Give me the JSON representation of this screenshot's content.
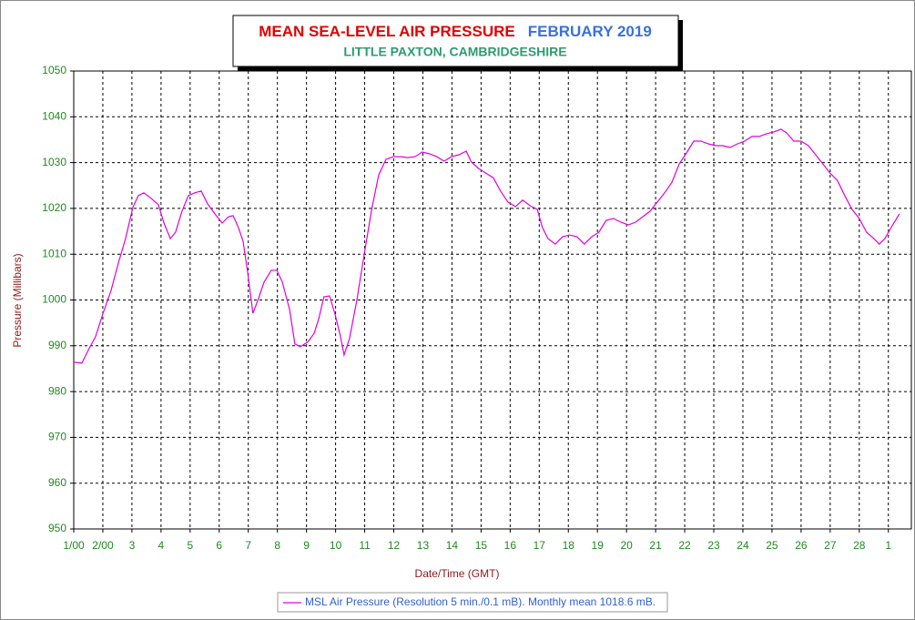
{
  "chart_data": {
    "type": "line",
    "title": "MEAN SEA-LEVEL AIR PRESSURE",
    "title_date": "FEBRUARY 2019",
    "subtitle": "LITTLE PAXTON, CAMBRIDGESHIRE",
    "xlabel": "Date/Time (GMT)",
    "ylabel": "Pressure (Millibars)",
    "xlim": [
      1,
      29.79
    ],
    "ylim": [
      950,
      1050
    ],
    "xticks": [
      {
        "value": 1,
        "label": "1/00"
      },
      {
        "value": 2,
        "label": "2/00"
      },
      3,
      4,
      5,
      6,
      7,
      8,
      9,
      10,
      11,
      12,
      13,
      14,
      15,
      16,
      17,
      18,
      19,
      20,
      21,
      22,
      23,
      24,
      25,
      26,
      27,
      28,
      {
        "value": 29,
        "label": "1"
      }
    ],
    "yticks": [
      950,
      960,
      970,
      980,
      990,
      1000,
      1010,
      1020,
      1030,
      1040,
      1050
    ],
    "grid": true,
    "x": [
      1.0,
      1.28,
      1.53,
      1.75,
      2.0,
      2.28,
      2.53,
      2.78,
      3.03,
      3.22,
      3.41,
      3.66,
      3.91,
      4.1,
      4.32,
      4.5,
      4.72,
      4.94,
      5.16,
      5.38,
      5.6,
      5.85,
      6.1,
      6.32,
      6.48,
      6.66,
      6.82,
      6.98,
      7.16,
      7.35,
      7.54,
      7.79,
      7.98,
      8.17,
      8.42,
      8.6,
      8.79,
      9.04,
      9.26,
      9.42,
      9.6,
      9.79,
      9.98,
      10.17,
      10.29,
      10.48,
      10.73,
      10.98,
      11.23,
      11.48,
      11.73,
      11.98,
      12.23,
      12.48,
      12.73,
      12.98,
      13.23,
      13.48,
      13.73,
      13.98,
      14.24,
      14.49,
      14.67,
      14.92,
      15.17,
      15.42,
      15.67,
      15.92,
      16.18,
      16.43,
      16.68,
      16.93,
      17.11,
      17.3,
      17.55,
      17.8,
      18.05,
      18.3,
      18.55,
      18.8,
      19.05,
      19.3,
      19.55,
      19.8,
      20.06,
      20.31,
      20.56,
      20.81,
      21.06,
      21.31,
      21.56,
      21.81,
      22.06,
      22.31,
      22.56,
      22.81,
      23.06,
      23.31,
      23.56,
      23.81,
      24.06,
      24.31,
      24.56,
      24.81,
      25.06,
      25.31,
      25.5,
      25.75,
      26.0,
      26.25,
      26.5,
      26.75,
      27.0,
      27.25,
      27.5,
      27.75,
      28.0,
      28.25,
      28.5,
      28.69,
      28.88,
      29.13,
      29.38
    ],
    "series": [
      {
        "name": "MSL Air Pressure (Resolution 5 min./0.1 mB). Monthly mean 1018.6 mB.",
        "color": "#e000e0",
        "values": [
          986.4,
          986.2,
          989.4,
          992.0,
          997.0,
          1002.0,
          1008.0,
          1013.4,
          1020.2,
          1022.8,
          1023.4,
          1022.2,
          1020.8,
          1016.8,
          1013.4,
          1014.8,
          1019.4,
          1022.8,
          1023.4,
          1023.8,
          1021.0,
          1018.8,
          1016.8,
          1018.2,
          1018.4,
          1015.8,
          1012.8,
          1005.9,
          997.1,
          1000.3,
          1003.9,
          1006.5,
          1006.5,
          1003.9,
          997.9,
          990.4,
          989.8,
          990.8,
          992.7,
          995.9,
          1000.7,
          1000.9,
          996.9,
          992.0,
          988.0,
          991.6,
          999.9,
          1009.8,
          1019.4,
          1027.3,
          1030.7,
          1031.3,
          1031.3,
          1031.1,
          1031.3,
          1032.3,
          1031.9,
          1031.3,
          1030.3,
          1031.3,
          1031.7,
          1032.5,
          1030.1,
          1028.7,
          1027.7,
          1026.7,
          1023.8,
          1021.4,
          1020.4,
          1021.8,
          1020.6,
          1019.8,
          1015.8,
          1013.4,
          1012.2,
          1013.8,
          1014.2,
          1013.8,
          1012.2,
          1013.8,
          1014.8,
          1017.4,
          1017.8,
          1017.0,
          1016.4,
          1017.0,
          1018.2,
          1019.4,
          1021.4,
          1023.4,
          1025.7,
          1029.7,
          1032.1,
          1034.7,
          1034.7,
          1034.1,
          1033.7,
          1033.7,
          1033.3,
          1034.1,
          1034.7,
          1035.7,
          1035.7,
          1036.3,
          1036.7,
          1037.3,
          1036.5,
          1034.7,
          1034.7,
          1033.7,
          1031.7,
          1029.7,
          1027.7,
          1026.1,
          1022.8,
          1019.8,
          1017.8,
          1014.8,
          1013.4,
          1012.2,
          1013.4,
          1016.2,
          1018.8
        ]
      }
    ]
  }
}
